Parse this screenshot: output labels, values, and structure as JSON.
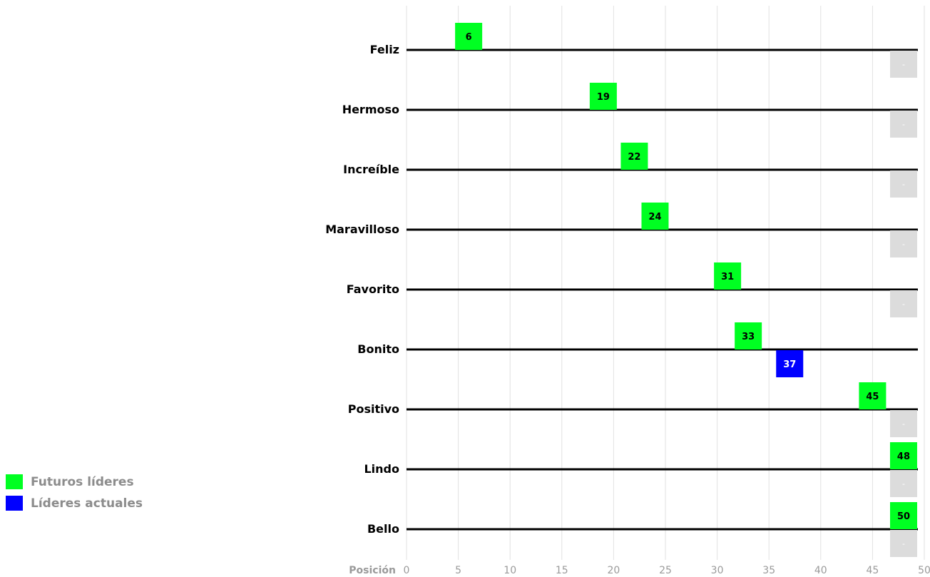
{
  "chart_data": {
    "type": "scatter",
    "categories": [
      "Feliz",
      "Hermoso",
      "Increíble",
      "Maravilloso",
      "Favorito",
      "Bonito",
      "Positivo",
      "Lindo",
      "Bello"
    ],
    "series": [
      {
        "name": "Futuros líderes",
        "color": "#00ff22",
        "values": [
          6,
          19,
          22,
          24,
          31,
          33,
          45,
          48,
          50
        ]
      },
      {
        "name": "Líderes actuales",
        "color": "#0000ff",
        "values": [
          null,
          null,
          null,
          null,
          null,
          37,
          null,
          null,
          null
        ]
      }
    ],
    "missing_label": "-",
    "missing_color": "#dcdcdc",
    "xlabel": "Posición",
    "xlim": [
      0,
      50
    ],
    "xticks": [
      0,
      5,
      10,
      15,
      20,
      25,
      30,
      35,
      40,
      45,
      50
    ],
    "grid": true,
    "legend_position": "bottom-left"
  }
}
